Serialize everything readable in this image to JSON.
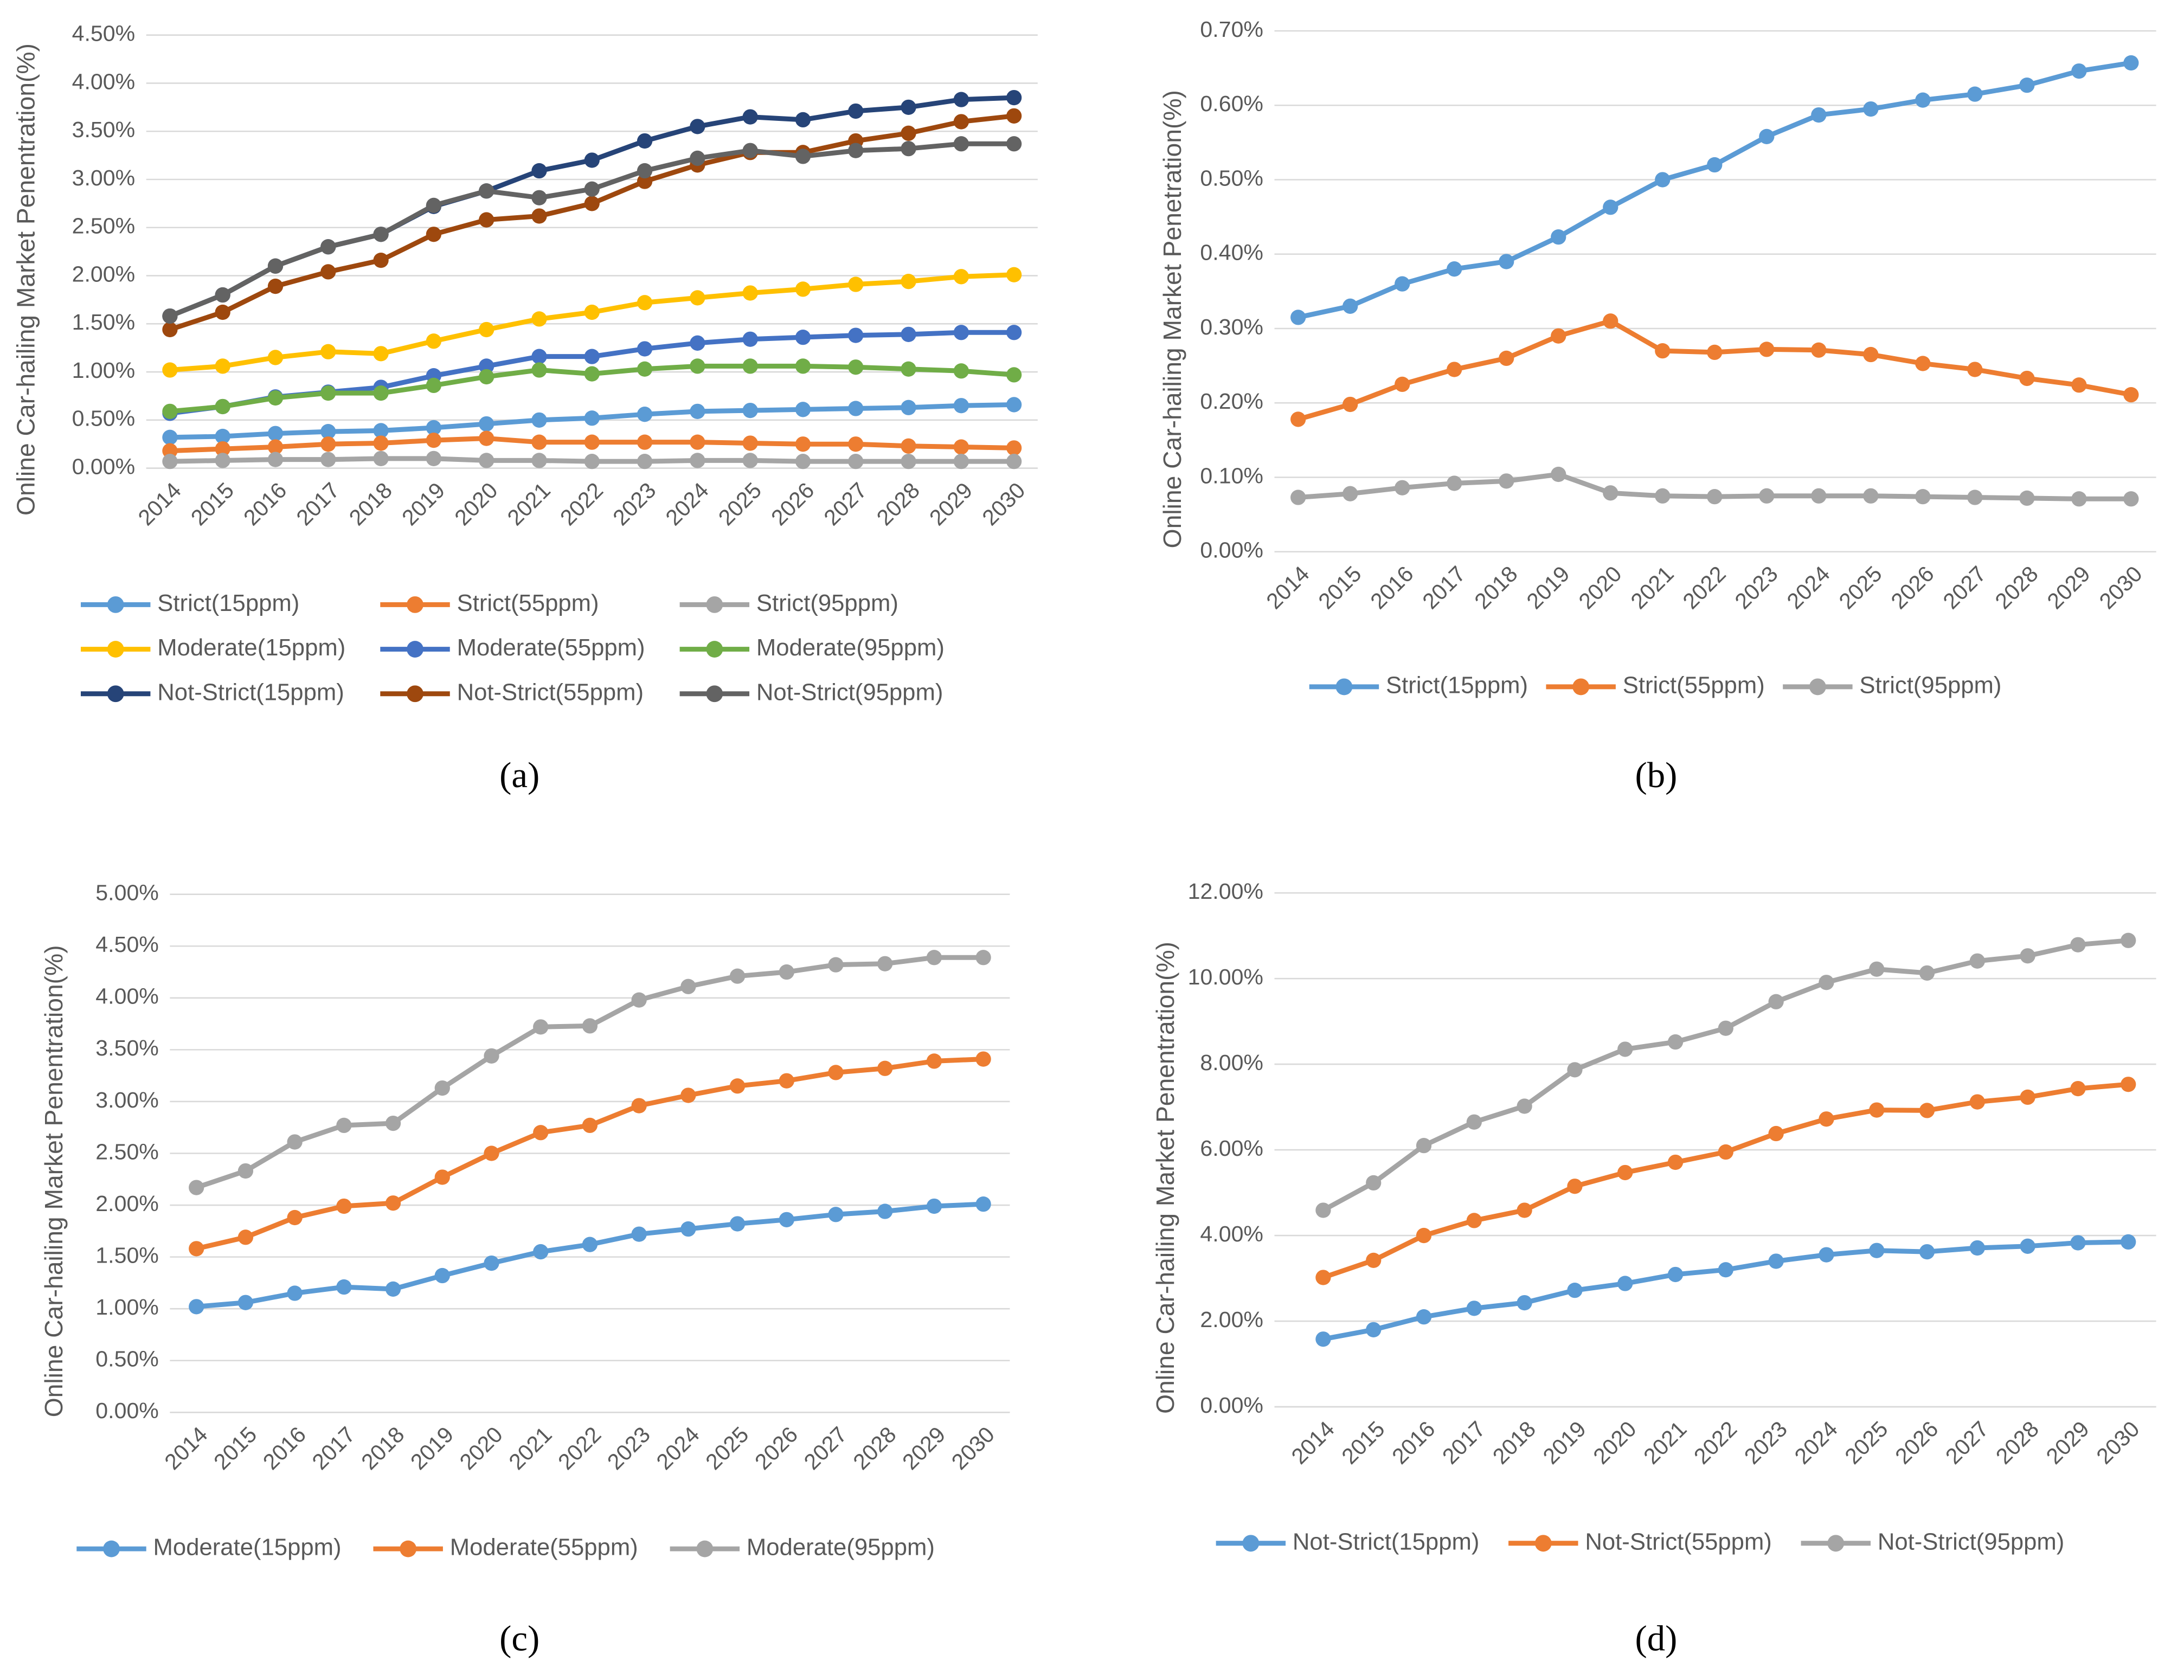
{
  "chart_data": [
    {
      "type": "line",
      "label": "(a)",
      "y_label": "Online Car-hailing Market Penentration(%)",
      "categories": [
        "2014",
        "2015",
        "2016",
        "2017",
        "2018",
        "2019",
        "2020",
        "2021",
        "2022",
        "2023",
        "2024",
        "2025",
        "2026",
        "2027",
        "2028",
        "2029",
        "2030"
      ],
      "ylim": [
        0,
        4.5
      ],
      "yticks": [
        {
          "value": 0,
          "label": "0.00%"
        },
        {
          "value": 0.5,
          "label": "0.50%"
        },
        {
          "value": 1,
          "label": "1.00%"
        },
        {
          "value": 1.5,
          "label": "1.50%"
        },
        {
          "value": 2,
          "label": "2.00%"
        },
        {
          "value": 2.5,
          "label": "2.50%"
        },
        {
          "value": 3,
          "label": "3.00%"
        },
        {
          "value": 3.5,
          "label": "3.50%"
        },
        {
          "value": 4,
          "label": "4.00%"
        },
        {
          "value": 4.5,
          "label": "4.50%"
        }
      ],
      "grid": true,
      "series": [
        {
          "name": "Strict(15ppm)",
          "color": "#5b9bd5",
          "values": [
            0.32,
            0.33,
            0.36,
            0.38,
            0.39,
            0.42,
            0.46,
            0.5,
            0.52,
            0.56,
            0.59,
            0.6,
            0.61,
            0.62,
            0.63,
            0.65,
            0.66
          ]
        },
        {
          "name": "Strict(55ppm)",
          "color": "#ed7d31",
          "values": [
            0.18,
            0.2,
            0.22,
            0.25,
            0.26,
            0.29,
            0.31,
            0.27,
            0.27,
            0.27,
            0.27,
            0.26,
            0.25,
            0.25,
            0.23,
            0.22,
            0.21
          ]
        },
        {
          "name": "Strict(95ppm)",
          "color": "#a5a5a5",
          "values": [
            0.07,
            0.08,
            0.09,
            0.09,
            0.1,
            0.1,
            0.08,
            0.08,
            0.07,
            0.07,
            0.08,
            0.08,
            0.07,
            0.07,
            0.07,
            0.07,
            0.07
          ]
        },
        {
          "name": "Moderate(15ppm)",
          "color": "#ffc000",
          "values": [
            1.02,
            1.06,
            1.15,
            1.21,
            1.19,
            1.32,
            1.44,
            1.55,
            1.62,
            1.72,
            1.77,
            1.82,
            1.86,
            1.91,
            1.94,
            1.99,
            2.01
          ]
        },
        {
          "name": "Moderate(55ppm)",
          "color": "#4472c4",
          "values": [
            0.57,
            0.64,
            0.74,
            0.79,
            0.84,
            0.96,
            1.06,
            1.16,
            1.16,
            1.24,
            1.3,
            1.34,
            1.36,
            1.38,
            1.39,
            1.41,
            1.41
          ]
        },
        {
          "name": "Moderate(95ppm)",
          "color": "#70ad47",
          "values": [
            0.59,
            0.64,
            0.73,
            0.78,
            0.78,
            0.86,
            0.95,
            1.02,
            0.98,
            1.03,
            1.06,
            1.06,
            1.06,
            1.05,
            1.03,
            1.01,
            0.97
          ]
        },
        {
          "name": "Not-Strict(15ppm)",
          "color": "#264478",
          "values": [
            1.58,
            1.8,
            2.1,
            2.3,
            2.43,
            2.72,
            2.88,
            3.09,
            3.2,
            3.4,
            3.55,
            3.65,
            3.62,
            3.71,
            3.75,
            3.83,
            3.85
          ]
        },
        {
          "name": "Not-Strict(55ppm)",
          "color": "#9e480e",
          "values": [
            1.44,
            1.62,
            1.89,
            2.04,
            2.16,
            2.43,
            2.58,
            2.62,
            2.75,
            2.98,
            3.15,
            3.28,
            3.28,
            3.4,
            3.48,
            3.6,
            3.66
          ]
        },
        {
          "name": "Not-Strict(95ppm)",
          "color": "#636363",
          "values": [
            1.58,
            1.8,
            2.1,
            2.3,
            2.43,
            2.73,
            2.88,
            2.81,
            2.9,
            3.09,
            3.22,
            3.3,
            3.24,
            3.3,
            3.32,
            3.37,
            3.37
          ]
        }
      ]
    },
    {
      "type": "line",
      "label": "(b)",
      "y_label": "Online Car-hailing Market Penetration(%)",
      "categories": [
        "2014",
        "2015",
        "2016",
        "2017",
        "2018",
        "2019",
        "2020",
        "2021",
        "2022",
        "2023",
        "2024",
        "2025",
        "2026",
        "2027",
        "2028",
        "2029",
        "2030"
      ],
      "ylim": [
        0,
        0.7
      ],
      "yticks": [
        {
          "value": 0,
          "label": "0.00%"
        },
        {
          "value": 0.1,
          "label": "0.10%"
        },
        {
          "value": 0.2,
          "label": "0.20%"
        },
        {
          "value": 0.3,
          "label": "0.30%"
        },
        {
          "value": 0.4,
          "label": "0.40%"
        },
        {
          "value": 0.5,
          "label": "0.50%"
        },
        {
          "value": 0.6,
          "label": "0.60%"
        },
        {
          "value": 0.7,
          "label": "0.70%"
        }
      ],
      "grid": true,
      "series": [
        {
          "name": "Strict(15ppm)",
          "color": "#5b9bd5",
          "values": [
            0.315,
            0.33,
            0.36,
            0.38,
            0.39,
            0.423,
            0.463,
            0.5,
            0.52,
            0.558,
            0.587,
            0.595,
            0.607,
            0.615,
            0.627,
            0.646,
            0.657
          ]
        },
        {
          "name": "Strict(55ppm)",
          "color": "#ed7d31",
          "values": [
            0.178,
            0.198,
            0.225,
            0.245,
            0.26,
            0.29,
            0.31,
            0.27,
            0.268,
            0.272,
            0.271,
            0.265,
            0.253,
            0.245,
            0.233,
            0.224,
            0.211
          ]
        },
        {
          "name": "Strict(95ppm)",
          "color": "#a5a5a5",
          "values": [
            0.073,
            0.078,
            0.086,
            0.092,
            0.095,
            0.104,
            0.079,
            0.075,
            0.074,
            0.075,
            0.075,
            0.075,
            0.074,
            0.073,
            0.072,
            0.071,
            0.071
          ]
        }
      ]
    },
    {
      "type": "line",
      "label": "(c)",
      "y_label": "Online Car-hailing Market Penentration(%)",
      "categories": [
        "2014",
        "2015",
        "2016",
        "2017",
        "2018",
        "2019",
        "2020",
        "2021",
        "2022",
        "2023",
        "2024",
        "2025",
        "2026",
        "2027",
        "2028",
        "2029",
        "2030"
      ],
      "ylim": [
        0,
        5
      ],
      "yticks": [
        {
          "value": 0,
          "label": "0.00%"
        },
        {
          "value": 0.5,
          "label": "0.50%"
        },
        {
          "value": 1,
          "label": "1.00%"
        },
        {
          "value": 1.5,
          "label": "1.50%"
        },
        {
          "value": 2,
          "label": "2.00%"
        },
        {
          "value": 2.5,
          "label": "2.50%"
        },
        {
          "value": 3,
          "label": "3.00%"
        },
        {
          "value": 3.5,
          "label": "3.50%"
        },
        {
          "value": 4,
          "label": "4.00%"
        },
        {
          "value": 4.5,
          "label": "4.50%"
        },
        {
          "value": 5,
          "label": "5.00%"
        }
      ],
      "grid": true,
      "series": [
        {
          "name": "Moderate(15ppm)",
          "color": "#5b9bd5",
          "values": [
            1.02,
            1.06,
            1.15,
            1.21,
            1.19,
            1.32,
            1.44,
            1.55,
            1.62,
            1.72,
            1.77,
            1.82,
            1.86,
            1.91,
            1.94,
            1.99,
            2.01
          ]
        },
        {
          "name": "Moderate(55ppm)",
          "color": "#ed7d31",
          "values": [
            1.58,
            1.69,
            1.88,
            1.99,
            2.02,
            2.27,
            2.5,
            2.7,
            2.77,
            2.96,
            3.06,
            3.15,
            3.2,
            3.28,
            3.32,
            3.39,
            3.41
          ]
        },
        {
          "name": "Moderate(95ppm)",
          "color": "#a5a5a5",
          "values": [
            2.17,
            2.33,
            2.61,
            2.77,
            2.79,
            3.13,
            3.44,
            3.72,
            3.73,
            3.98,
            4.11,
            4.21,
            4.25,
            4.32,
            4.33,
            4.39,
            4.39
          ]
        }
      ]
    },
    {
      "type": "line",
      "label": "(d)",
      "y_label": "Online Car-hailing Market Penentration(%)",
      "categories": [
        "2014",
        "2015",
        "2016",
        "2017",
        "2018",
        "2019",
        "2020",
        "2021",
        "2022",
        "2023",
        "2024",
        "2025",
        "2026",
        "2027",
        "2028",
        "2029",
        "2030"
      ],
      "ylim": [
        0,
        12
      ],
      "yticks": [
        {
          "value": 0,
          "label": "0.00%"
        },
        {
          "value": 2,
          "label": "2.00%"
        },
        {
          "value": 4,
          "label": "4.00%"
        },
        {
          "value": 6,
          "label": "6.00%"
        },
        {
          "value": 8,
          "label": "8.00%"
        },
        {
          "value": 10,
          "label": "10.00%"
        },
        {
          "value": 12,
          "label": "12.00%"
        }
      ],
      "grid": true,
      "series": [
        {
          "name": "Not-Strict(15ppm)",
          "color": "#5b9bd5",
          "values": [
            1.58,
            1.8,
            2.1,
            2.3,
            2.43,
            2.72,
            2.88,
            3.09,
            3.2,
            3.4,
            3.55,
            3.65,
            3.62,
            3.71,
            3.75,
            3.83,
            3.85
          ]
        },
        {
          "name": "Not-Strict(55ppm)",
          "color": "#ed7d31",
          "values": [
            3.02,
            3.42,
            4.0,
            4.35,
            4.59,
            5.15,
            5.47,
            5.71,
            5.95,
            6.38,
            6.72,
            6.93,
            6.92,
            7.12,
            7.23,
            7.43,
            7.53
          ]
        },
        {
          "name": "Not-Strict(95ppm)",
          "color": "#a5a5a5",
          "values": [
            4.59,
            5.23,
            6.1,
            6.65,
            7.02,
            7.87,
            8.35,
            8.52,
            8.84,
            9.46,
            9.91,
            10.22,
            10.13,
            10.41,
            10.53,
            10.79,
            10.89
          ]
        }
      ]
    }
  ]
}
